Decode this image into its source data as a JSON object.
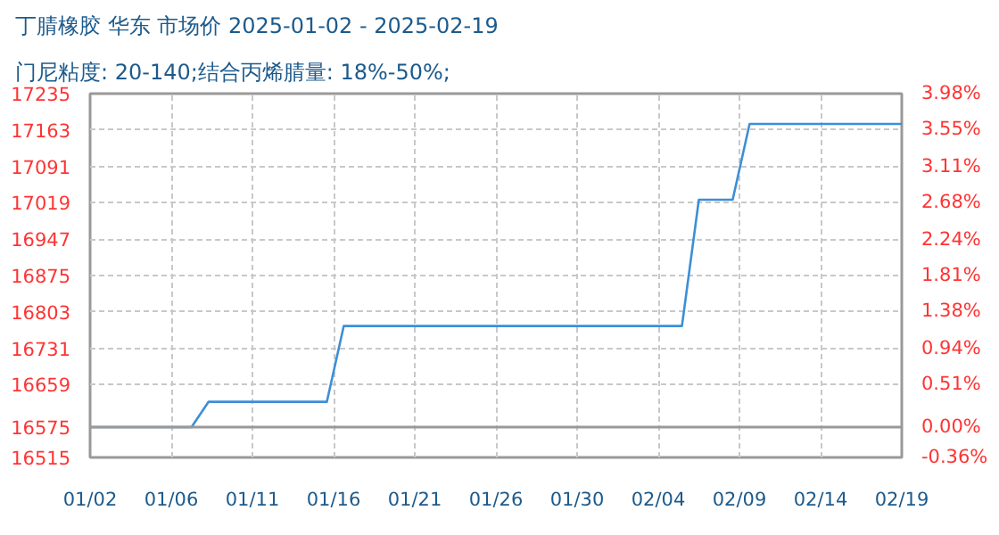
{
  "chart_data": {
    "type": "line",
    "title": "丁腈橡胶 华东 市场价 2025-01-02 - 2025-02-19",
    "subtitle": "门尼粘度: 20-140;结合丙烯腈量: 18%-50%;",
    "x": [
      "2025-01-02",
      "2025-01-08",
      "2025-01-09",
      "2025-01-16",
      "2025-01-17",
      "2025-02-06",
      "2025-02-07",
      "2025-02-09",
      "2025-02-10",
      "2025-02-19"
    ],
    "series": [
      {
        "color": "#3c8fd6",
        "values": [
          16575,
          16575,
          16625,
          16625,
          16775,
          16775,
          17025,
          17025,
          17175,
          17175
        ]
      }
    ],
    "xlim": [
      "2025-01-02",
      "2025-02-19"
    ],
    "xticks": [
      {
        "value": "2025-01-02",
        "label": "01/02"
      },
      {
        "value": "2025-01-06T19:12",
        "label": "01/06"
      },
      {
        "value": "2025-01-11T14:24",
        "label": "01/11"
      },
      {
        "value": "2025-01-16T09:36",
        "label": "01/16"
      },
      {
        "value": "2025-01-21T04:48",
        "label": "01/21"
      },
      {
        "value": "2025-01-26",
        "label": "01/26"
      },
      {
        "value": "2025-01-30T19:12",
        "label": "01/30"
      },
      {
        "value": "2025-02-04T14:24",
        "label": "02/04"
      },
      {
        "value": "2025-02-09T09:36",
        "label": "02/09"
      },
      {
        "value": "2025-02-14T04:48",
        "label": "02/14"
      },
      {
        "value": "2025-02-19",
        "label": "02/19"
      }
    ],
    "ylim": [
      16515,
      17235
    ],
    "yticks": [
      16515,
      16575,
      16659,
      16731,
      16803,
      16875,
      16947,
      17019,
      17091,
      17163,
      17235
    ],
    "y2lim": [
      -0.36,
      3.98
    ],
    "y2ticks": [
      {
        "value": -0.36,
        "label": "-0.36%"
      },
      {
        "value": 0,
        "label": "0.00%"
      },
      {
        "value": 0.51,
        "label": "0.51%"
      },
      {
        "value": 0.94,
        "label": "0.94%"
      },
      {
        "value": 1.38,
        "label": "1.38%"
      },
      {
        "value": 1.81,
        "label": "1.81%"
      },
      {
        "value": 2.24,
        "label": "2.24%"
      },
      {
        "value": 2.68,
        "label": "2.68%"
      },
      {
        "value": 3.11,
        "label": "3.11%"
      },
      {
        "value": 3.55,
        "label": "3.55%"
      },
      {
        "value": 3.98,
        "label": "3.98%"
      }
    ],
    "ref_lines": [
      {
        "axis": "y",
        "value": 16575,
        "color": "#999999"
      }
    ],
    "grid": true,
    "marker": "none",
    "line_style": "solid"
  }
}
